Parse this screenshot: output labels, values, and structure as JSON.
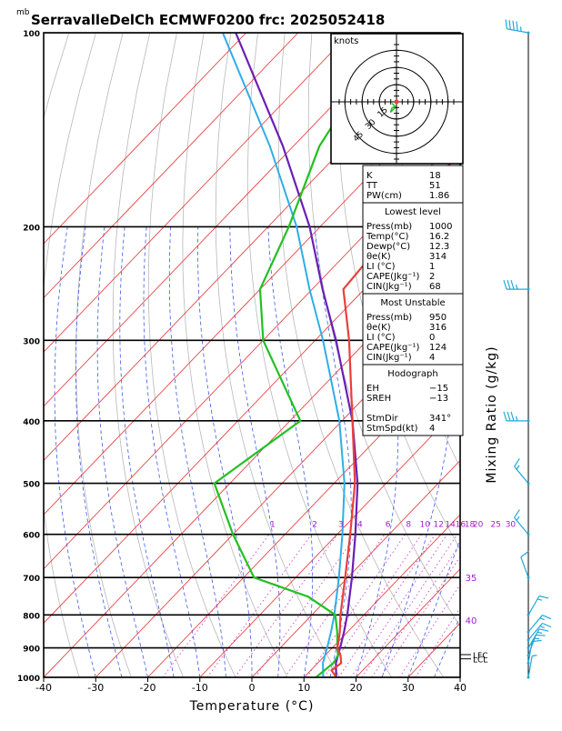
{
  "chart_data": {
    "type": "skew-t",
    "title": "SerravalleDelCh ECMWF0200 frc: 2025052418",
    "pressure_unit": "mb",
    "xlabel": "Temperature (°C)",
    "right_label": "Mixing Ratio (g/kg)",
    "hodograph_label": "knots",
    "x_ticks": [
      "-40",
      "-30",
      "-20",
      "-10",
      "0",
      "10",
      "20",
      "30",
      "40"
    ],
    "p_ticks": [
      "100",
      "200",
      "300",
      "400",
      "500",
      "600",
      "700",
      "800",
      "900",
      "1000"
    ],
    "p_levels": [
      100,
      200,
      300,
      400,
      500,
      600,
      700,
      800,
      900,
      1000
    ],
    "xlim": [
      -40,
      40
    ],
    "mixing_ratio_labels": [
      "1",
      "2",
      "3",
      "4",
      "6",
      "8",
      "10",
      "12",
      "14",
      "16",
      "18",
      "20",
      "25",
      "30"
    ],
    "mixing_ratio_values": [
      1,
      2,
      3,
      4,
      6,
      8,
      10,
      12,
      14,
      16,
      18,
      20,
      25,
      30
    ],
    "theta_e_labels": [
      {
        "text": "35",
        "p": 700
      },
      {
        "text": "40",
        "p": 815
      }
    ],
    "lcl_labels": [
      "LFC",
      "LCL"
    ],
    "temperature": [
      {
        "p": 1000,
        "t": 16.2
      },
      {
        "p": 975,
        "t": 14.0
      },
      {
        "p": 950,
        "t": 14.5
      },
      {
        "p": 925,
        "t": 13.0
      },
      {
        "p": 900,
        "t": 11.0
      },
      {
        "p": 850,
        "t": 8.5
      },
      {
        "p": 800,
        "t": 5.5
      },
      {
        "p": 700,
        "t": -0.5
      },
      {
        "p": 600,
        "t": -7.5
      },
      {
        "p": 500,
        "t": -16.0
      },
      {
        "p": 400,
        "t": -28.0
      },
      {
        "p": 300,
        "t": -43.5
      },
      {
        "p": 250,
        "t": -54.0
      },
      {
        "p": 200,
        "t": -55.5
      },
      {
        "p": 150,
        "t": -57.0
      },
      {
        "p": 100,
        "t": -60.0
      }
    ],
    "dewpoint": [
      {
        "p": 1000,
        "t": 12.3
      },
      {
        "p": 950,
        "t": 13.0
      },
      {
        "p": 925,
        "t": 12.5
      },
      {
        "p": 900,
        "t": 11.0
      },
      {
        "p": 850,
        "t": 8.0
      },
      {
        "p": 800,
        "t": 4.5
      },
      {
        "p": 750,
        "t": -4.0
      },
      {
        "p": 700,
        "t": -18.0
      },
      {
        "p": 600,
        "t": -30.0
      },
      {
        "p": 500,
        "t": -43.0
      },
      {
        "p": 400,
        "t": -38.0
      },
      {
        "p": 300,
        "t": -60.0
      },
      {
        "p": 250,
        "t": -70.0
      },
      {
        "p": 200,
        "t": -76.0
      },
      {
        "p": 150,
        "t": -85.0
      },
      {
        "p": 100,
        "t": -92.0
      }
    ],
    "parcel": [
      {
        "p": 1000,
        "t": 16.2
      },
      {
        "p": 950,
        "t": 13.5
      },
      {
        "p": 925,
        "t": 12.5
      },
      {
        "p": 900,
        "t": 11.5
      },
      {
        "p": 850,
        "t": 9.3
      },
      {
        "p": 800,
        "t": 6.8
      },
      {
        "p": 700,
        "t": 0.8
      },
      {
        "p": 600,
        "t": -6.5
      },
      {
        "p": 500,
        "t": -15.5
      },
      {
        "p": 400,
        "t": -28.0
      },
      {
        "p": 300,
        "t": -46.0
      },
      {
        "p": 250,
        "t": -58.0
      },
      {
        "p": 200,
        "t": -72.0
      },
      {
        "p": 150,
        "t": -92.0
      },
      {
        "p": 100,
        "t": -122.0
      }
    ],
    "wind_barbs": [
      {
        "p": 100,
        "dir": 280,
        "spd": 45
      },
      {
        "p": 250,
        "dir": 270,
        "spd": 35
      },
      {
        "p": 400,
        "dir": 270,
        "spd": 35
      },
      {
        "p": 500,
        "dir": 320,
        "spd": 15
      },
      {
        "p": 600,
        "dir": 320,
        "spd": 15
      },
      {
        "p": 700,
        "dir": 340,
        "spd": 10
      },
      {
        "p": 800,
        "dir": 30,
        "spd": 15
      },
      {
        "p": 850,
        "dir": 40,
        "spd": 15
      },
      {
        "p": 875,
        "dir": 40,
        "spd": 15
      },
      {
        "p": 900,
        "dir": 30,
        "spd": 15
      },
      {
        "p": 925,
        "dir": 20,
        "spd": 15
      },
      {
        "p": 950,
        "dir": 10,
        "spd": 10
      },
      {
        "p": 1000,
        "dir": 10,
        "spd": 5
      }
    ],
    "hodograph_rings": [
      "15",
      "30",
      "45"
    ],
    "hodograph_ring_values": [
      15,
      30,
      45
    ],
    "hodograph_points": [
      {
        "u": -2,
        "v": -2
      },
      {
        "u": -3,
        "v": -1
      },
      {
        "u": -1,
        "v": -3
      },
      {
        "u": -3,
        "v": -4
      },
      {
        "u": -4,
        "v": -7
      },
      {
        "u": -1,
        "v": -4
      }
    ]
  },
  "indices": {
    "top": [
      {
        "label": "K",
        "value": "18"
      },
      {
        "label": "TT",
        "value": "51"
      },
      {
        "label": "PW(cm)",
        "value": "1.86"
      }
    ],
    "lowest_level": {
      "heading": "Lowest level",
      "rows": [
        {
          "label": "Press(mb)",
          "value": "1000"
        },
        {
          "label": "Temp(°C)",
          "value": "16.2"
        },
        {
          "label": "Dewp(°C)",
          "value": "12.3"
        },
        {
          "label": "θe(K)",
          "value": "314"
        },
        {
          "label": "LI (°C)",
          "value": "1"
        },
        {
          "label": "CAPE(Jkg⁻¹)",
          "value": "2"
        },
        {
          "label": "CIN(Jkg⁻¹)",
          "value": "68"
        }
      ]
    },
    "most_unstable": {
      "heading": "Most Unstable",
      "rows": [
        {
          "label": "Press(mb)",
          "value": "950"
        },
        {
          "label": "θe(K)",
          "value": "316"
        },
        {
          "label": "LI (°C)",
          "value": "0"
        },
        {
          "label": "CAPE(Jkg⁻¹)",
          "value": "124"
        },
        {
          "label": "CIN(Jkg⁻¹)",
          "value": "4"
        }
      ]
    },
    "hodograph": {
      "heading": "Hodograph",
      "rows": [
        {
          "label": "EH",
          "value": "−15"
        },
        {
          "label": "SREH",
          "value": "−13"
        },
        {
          "label": "",
          "value": ""
        },
        {
          "label": "StmDir",
          "value": "341°"
        },
        {
          "label": "StmSpd(kt)",
          "value": "4"
        }
      ]
    }
  },
  "colors": {
    "temperature": "#e8403a",
    "dewpoint": "#22c022",
    "parcel": "#6a1fb5",
    "parcel2": "#2eaee8",
    "isotherm": "#e83030",
    "adiabat_moist": "#3d5ae8",
    "mixing": "#d040d0",
    "barb": "#22a8d8",
    "label_purple": "#9b1fc8"
  }
}
